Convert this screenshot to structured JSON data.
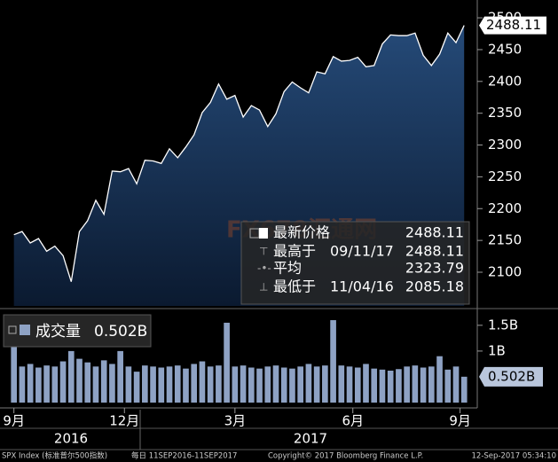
{
  "chart_data": [
    {
      "type": "area",
      "name": "SPX Index",
      "series": [
        {
          "name": "最新价格",
          "color": "#ffffff",
          "values": [
            2159,
            2164,
            2146,
            2153,
            2133,
            2141,
            2126,
            2085,
            2164,
            2181,
            2213,
            2191,
            2259,
            2258,
            2263,
            2239,
            2276,
            2275,
            2271,
            2294,
            2280,
            2297,
            2316,
            2351,
            2367,
            2396,
            2372,
            2378,
            2344,
            2362,
            2355,
            2329,
            2349,
            2384,
            2399,
            2390,
            2382,
            2415,
            2412,
            2439,
            2432,
            2433,
            2438,
            2423,
            2425,
            2459,
            2473,
            2472,
            2472,
            2476,
            2441,
            2425,
            2443,
            2476,
            2461,
            2488.11
          ]
        }
      ],
      "ylim": [
        2047,
        2528
      ],
      "yticks": [
        2100,
        2150,
        2200,
        2250,
        2300,
        2350,
        2400,
        2450,
        2500
      ],
      "xlim": [
        -1.7,
        56.6
      ],
      "stats": [
        {
          "label": "最新价格",
          "value": 2488.11
        },
        {
          "label": "最高于",
          "date": "09/11/17",
          "value": 2488.11
        },
        {
          "label": "平均",
          "value": 2323.79
        },
        {
          "label": "最低于",
          "date": "11/04/16",
          "value": 2085.18
        }
      ]
    },
    {
      "type": "bar",
      "series": [
        {
          "name": "成交量",
          "color": "#8ea2c4",
          "values": [
            1.1,
            0.7,
            0.75,
            0.68,
            0.72,
            0.7,
            0.8,
            1.0,
            0.85,
            0.78,
            0.7,
            0.82,
            0.75,
            1.0,
            0.7,
            0.6,
            0.72,
            0.7,
            0.68,
            0.7,
            0.72,
            0.66,
            0.75,
            0.8,
            0.7,
            0.72,
            1.55,
            0.7,
            0.72,
            0.68,
            0.66,
            0.7,
            0.72,
            0.68,
            0.66,
            0.7,
            0.75,
            0.7,
            0.72,
            1.6,
            0.72,
            0.7,
            0.68,
            0.75,
            0.66,
            0.64,
            0.62,
            0.65,
            0.7,
            0.72,
            0.68,
            0.7,
            0.9,
            0.64,
            0.7,
            0.502
          ]
        }
      ],
      "current": {
        "value": 0.502,
        "label": "0.502B"
      },
      "ylim": [
        0,
        1.79
      ],
      "yticks": [
        {
          "value": 1,
          "label": "1B"
        },
        {
          "value": 1.5,
          "label": "1.5B"
        }
      ],
      "xlim": [
        -1.7,
        56.6
      ],
      "xticks": [
        {
          "value": 0,
          "label": "9月"
        },
        {
          "value": 13.5,
          "label": "12月"
        },
        {
          "value": 27,
          "label": "3月"
        },
        {
          "value": 41.4,
          "label": "6月"
        },
        {
          "value": 54.5,
          "label": "9月"
        }
      ],
      "year_labels": [
        "2016",
        "2017"
      ]
    }
  ],
  "watermark": "FX678汇通网",
  "footer": [
    "SPX Index (标准普尔500指数)",
    "每日 11SEP2016-11SEP2017",
    "Copyright© 2017 Bloomberg Finance L.P.",
    "12-Sep-2017 05:34:10"
  ]
}
